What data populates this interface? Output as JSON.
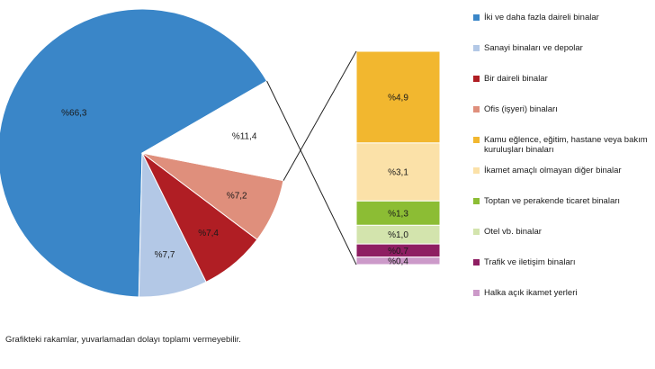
{
  "chart_data": {
    "type": "pie",
    "pie": [
      {
        "label": "%66,3",
        "value": 66.3,
        "color": "#3a86c8",
        "legend": "İki ve daha fazla daireli binalar"
      },
      {
        "label": "%7,7",
        "value": 7.7,
        "color": "#b3c8e6",
        "legend": "Sanayi binaları ve depolar"
      },
      {
        "label": "%7,4",
        "value": 7.4,
        "color": "#b01e24",
        "legend": "Bir daireli binalar"
      },
      {
        "label": "%7,2",
        "value": 7.2,
        "color": "#df8f7c",
        "legend": "Ofis (işyeri) binaları"
      },
      {
        "label": "%11,4",
        "value": 11.4,
        "color": "#ffffff",
        "legend": ""
      }
    ],
    "breakdown": [
      {
        "label": "%4,9",
        "value": 4.9,
        "color": "#f2b72f",
        "legend": "Kamu eğlence, eğitim, hastane veya bakım kuruluşları binaları"
      },
      {
        "label": "%3,1",
        "value": 3.1,
        "color": "#fbe1a8",
        "legend": "İkamet amaçlı olmayan diğer binalar"
      },
      {
        "label": "%1,3",
        "value": 1.3,
        "color": "#8cbd34",
        "legend": "Toptan ve perakende ticaret binaları"
      },
      {
        "label": "%1,0",
        "value": 1.0,
        "color": "#d3e4ad",
        "legend": "Otel vb. binalar"
      },
      {
        "label": "%0,7",
        "value": 0.7,
        "color": "#8e1e62",
        "legend": "Trafik ve iletişim binaları"
      },
      {
        "label": "%0,4",
        "value": 0.4,
        "color": "#cc9ac9",
        "legend": "Halka açık ikamet yerleri"
      }
    ]
  },
  "footnote": "Grafikteki rakamlar, yuvarlamadan dolayı toplamı vermeyebilir."
}
